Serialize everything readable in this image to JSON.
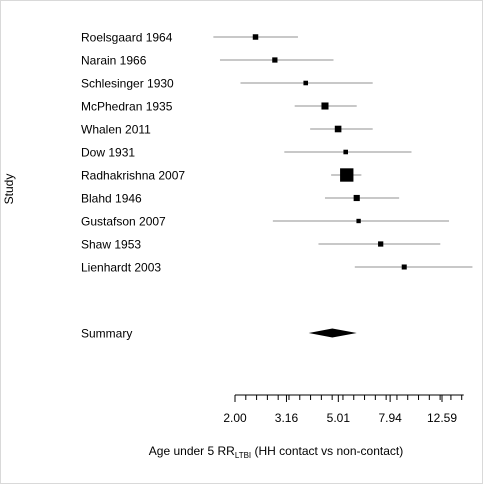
{
  "chart_data": {
    "type": "forest",
    "ylabel": "Study",
    "xlabel_main": "Age under 5 RR",
    "xlabel_sub": "LTBI",
    "xlabel_tail": " (HH contact vs non-contact)",
    "x_scale": "log",
    "xticks": [
      2.0,
      3.16,
      5.01,
      7.94,
      12.59
    ],
    "xtick_labels": [
      "2.00",
      "3.16",
      "5.01",
      "7.94",
      "12.59"
    ],
    "xlim": [
      2.0,
      15.0
    ],
    "studies": [
      {
        "name": "Roelsgaard 1964",
        "rr": 2.4,
        "lower": 1.65,
        "upper": 3.5,
        "weight": 0.55
      },
      {
        "name": "Narain 1966",
        "rr": 2.85,
        "lower": 1.75,
        "upper": 4.8,
        "weight": 0.5
      },
      {
        "name": "Schlesinger 1930",
        "rr": 3.75,
        "lower": 2.1,
        "upper": 6.8,
        "weight": 0.35
      },
      {
        "name": "McPhedran 1935",
        "rr": 4.45,
        "lower": 3.4,
        "upper": 5.9,
        "weight": 0.9
      },
      {
        "name": "Whalen 2011",
        "rr": 5.0,
        "lower": 3.9,
        "upper": 6.8,
        "weight": 0.8
      },
      {
        "name": "Dow 1931",
        "rr": 5.35,
        "lower": 3.1,
        "upper": 9.6,
        "weight": 0.35
      },
      {
        "name": "Radhakrishna 2007",
        "rr": 5.4,
        "lower": 4.7,
        "upper": 6.15,
        "weight": 2.3
      },
      {
        "name": "Blahd 1946",
        "rr": 5.9,
        "lower": 4.45,
        "upper": 8.6,
        "weight": 0.7
      },
      {
        "name": "Gustafson 2007",
        "rr": 6.0,
        "lower": 2.8,
        "upper": 13.4,
        "weight": 0.3
      },
      {
        "name": "Shaw 1953",
        "rr": 7.3,
        "lower": 4.2,
        "upper": 12.4,
        "weight": 0.5
      },
      {
        "name": "Lienhardt 2003",
        "rr": 9.0,
        "lower": 5.8,
        "upper": 16.5,
        "weight": 0.45
      }
    ],
    "summary": {
      "name": "Summary",
      "rr": 4.75,
      "lower": 3.85,
      "upper": 5.9
    },
    "colors": {
      "ci": "#c8c8c8",
      "point": "#000000",
      "axis": "#000000"
    }
  }
}
